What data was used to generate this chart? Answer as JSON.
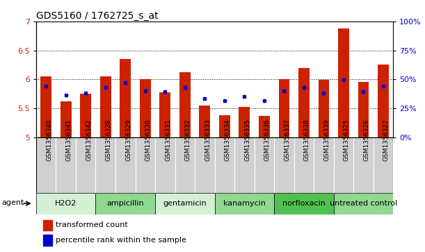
{
  "title": "GDS5160 / 1762725_s_at",
  "samples": [
    "GSM1356340",
    "GSM1356341",
    "GSM1356342",
    "GSM1356328",
    "GSM1356329",
    "GSM1356330",
    "GSM1356331",
    "GSM1356332",
    "GSM1356333",
    "GSM1356334",
    "GSM1356335",
    "GSM1356336",
    "GSM1356337",
    "GSM1356338",
    "GSM1356339",
    "GSM1356325",
    "GSM1356326",
    "GSM1356327"
  ],
  "bar_values": [
    6.05,
    5.62,
    5.75,
    6.05,
    6.35,
    6.0,
    5.78,
    6.12,
    5.55,
    5.38,
    5.53,
    5.37,
    6.0,
    6.19,
    5.99,
    6.88,
    5.96,
    6.25
  ],
  "dot_values": [
    5.88,
    5.73,
    5.76,
    5.86,
    5.95,
    5.8,
    5.79,
    5.86,
    5.67,
    5.63,
    5.7,
    5.63,
    5.8,
    5.86,
    5.76,
    5.99,
    5.79,
    5.88
  ],
  "groups": [
    {
      "label": "H2O2",
      "start": 0,
      "end": 3,
      "color": "#d4f0d4"
    },
    {
      "label": "ampicillin",
      "start": 3,
      "end": 6,
      "color": "#90d890"
    },
    {
      "label": "gentamicin",
      "start": 6,
      "end": 9,
      "color": "#d4f0d4"
    },
    {
      "label": "kanamycin",
      "start": 9,
      "end": 12,
      "color": "#90d890"
    },
    {
      "label": "norfloxacin",
      "start": 12,
      "end": 15,
      "color": "#50c050"
    },
    {
      "label": "untreated control",
      "start": 15,
      "end": 18,
      "color": "#90d890"
    }
  ],
  "bar_color": "#cc2200",
  "dot_color": "#0000cc",
  "ylim_left": [
    5.0,
    7.0
  ],
  "ylim_right": [
    0,
    100
  ],
  "yticks_left": [
    5.0,
    5.5,
    6.0,
    6.5,
    7.0
  ],
  "ytick_labels_left": [
    "5",
    "5.5",
    "6",
    "6.5",
    "7"
  ],
  "yticks_right": [
    0,
    25,
    50,
    75,
    100
  ],
  "ytick_labels_right": [
    "0%",
    "25%",
    "50%",
    "75%",
    "100%"
  ],
  "grid_values": [
    5.5,
    6.0,
    6.5
  ],
  "bar_width": 0.55,
  "agent_label": "agent",
  "legend_bar_label": "transformed count",
  "legend_dot_label": "percentile rank within the sample",
  "sample_cell_color": "#d0d0d0",
  "plot_bg_color": "#ffffff",
  "tick_label_fontsize": 6.5,
  "title_fontsize": 10,
  "group_label_fontsize": 8,
  "legend_fontsize": 8
}
